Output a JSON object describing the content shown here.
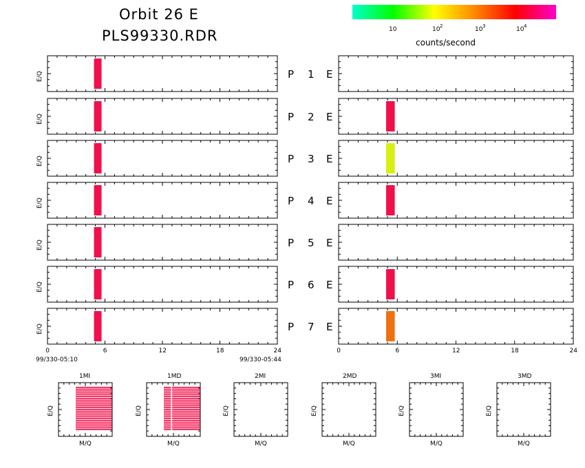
{
  "header": {
    "title_line1": "Orbit 26 E",
    "title_line2": "PLS99330.RDR"
  },
  "colorbar": {
    "gradient_colors": [
      "#00ffcc",
      "#00ff00",
      "#ffff00",
      "#ff8800",
      "#ff0000",
      "#ff00cc"
    ],
    "ticks": [
      {
        "label": "10",
        "exp": ""
      },
      {
        "label": "10",
        "exp": "2"
      },
      {
        "label": "10",
        "exp": "3"
      },
      {
        "label": "10",
        "exp": "4"
      }
    ],
    "units": "counts/second"
  },
  "panel_axis_label": "E/Q",
  "time_axis": {
    "tick_labels": [
      "0",
      "6",
      "12",
      "18",
      "24"
    ],
    "start_label": "99/330-05:10",
    "end_label": "99/330-05:44"
  },
  "rows": [
    {
      "p_label": "P",
      "num": "1",
      "e_label": "E"
    },
    {
      "p_label": "P",
      "num": "2",
      "e_label": "E"
    },
    {
      "p_label": "P",
      "num": "3",
      "e_label": "E"
    },
    {
      "p_label": "P",
      "num": "4",
      "e_label": "E"
    },
    {
      "p_label": "P",
      "num": "5",
      "e_label": "E"
    },
    {
      "p_label": "P",
      "num": "6",
      "e_label": "E"
    },
    {
      "p_label": "P",
      "num": "7",
      "e_label": "E"
    }
  ],
  "chart_data": {
    "type": "heatmap",
    "x_range": [
      0,
      24
    ],
    "x_tick_values": [
      0,
      6,
      12,
      18,
      24
    ],
    "color_scale": "log",
    "color_scale_units": "counts/second",
    "left_column": [
      {
        "panel": "P1",
        "bars": [
          {
            "x_start": 5.0,
            "x_end": 5.5,
            "color": "#f0104a"
          }
        ]
      },
      {
        "panel": "P2",
        "bars": [
          {
            "x_start": 5.0,
            "x_end": 5.5,
            "color": "#f0104a"
          }
        ]
      },
      {
        "panel": "P3",
        "bars": [
          {
            "x_start": 5.0,
            "x_end": 5.5,
            "color": "#f0104a"
          }
        ]
      },
      {
        "panel": "P4",
        "bars": [
          {
            "x_start": 5.0,
            "x_end": 5.5,
            "color": "#f0104a"
          }
        ]
      },
      {
        "panel": "P5",
        "bars": [
          {
            "x_start": 5.0,
            "x_end": 5.5,
            "color": "#f0104a"
          }
        ]
      },
      {
        "panel": "P6",
        "bars": [
          {
            "x_start": 5.0,
            "x_end": 5.5,
            "color": "#f0104a"
          }
        ]
      },
      {
        "panel": "P7",
        "bars": [
          {
            "x_start": 5.0,
            "x_end": 5.5,
            "color": "#f0104a"
          }
        ]
      }
    ],
    "right_column": [
      {
        "panel": "P1",
        "bars": []
      },
      {
        "panel": "P2",
        "bars": [
          {
            "x_start": 5.0,
            "x_end": 5.6,
            "color": "#f0104a"
          }
        ]
      },
      {
        "panel": "P3",
        "bars": [
          {
            "x_start": 5.0,
            "x_end": 5.6,
            "color": "#d7f010"
          }
        ]
      },
      {
        "panel": "P4",
        "bars": [
          {
            "x_start": 5.0,
            "x_end": 5.6,
            "color": "#f0104a"
          }
        ]
      },
      {
        "panel": "P5",
        "bars": []
      },
      {
        "panel": "P6",
        "bars": [
          {
            "x_start": 5.0,
            "x_end": 5.6,
            "color": "#f0104a"
          }
        ]
      },
      {
        "panel": "P7",
        "bars": [
          {
            "x_start": 5.0,
            "x_end": 5.6,
            "color": "#f07010"
          }
        ]
      }
    ],
    "mq_panels": [
      {
        "title": "1MI",
        "xlabel": "M/Q",
        "ylabel": "E/Q",
        "filled": true,
        "fill_color": "#f0104a",
        "line_count": 24,
        "gaps": []
      },
      {
        "title": "1MD",
        "xlabel": "M/Q",
        "ylabel": "E/Q",
        "filled": true,
        "fill_color": "#f0104a",
        "line_count": 24,
        "gaps": [
          0.2
        ]
      },
      {
        "title": "2MI",
        "xlabel": "M/Q",
        "ylabel": "E/Q",
        "filled": false
      },
      {
        "title": "2MD",
        "xlabel": "M/Q",
        "ylabel": "E/Q",
        "filled": false
      },
      {
        "title": "3MI",
        "xlabel": "M/Q",
        "ylabel": "E/Q",
        "filled": false
      },
      {
        "title": "3MD",
        "xlabel": "M/Q",
        "ylabel": "E/Q",
        "filled": false
      }
    ]
  }
}
